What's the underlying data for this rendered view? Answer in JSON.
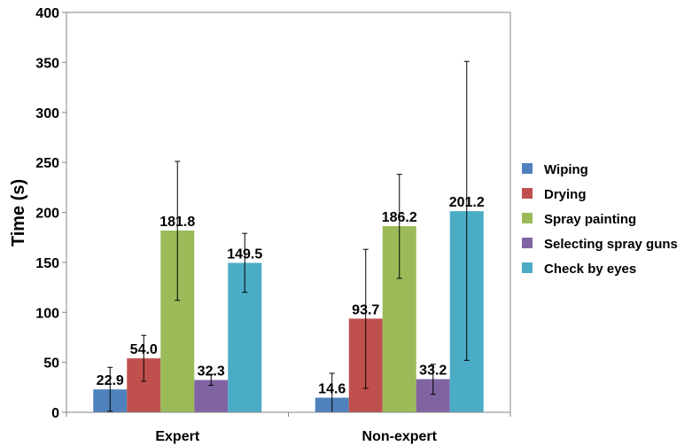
{
  "chart_data": {
    "type": "bar",
    "categories": [
      "Expert",
      "Non-expert"
    ],
    "ylabel": "Time (s)",
    "xlabel": "",
    "ylim": [
      0,
      400
    ],
    "yticks": [
      0,
      50,
      100,
      150,
      200,
      250,
      300,
      350,
      400
    ],
    "grid": false,
    "legend_position": "right",
    "series": [
      {
        "name": "Wiping",
        "color": "#4F81BD",
        "values": [
          22.9,
          14.6
        ],
        "labels": [
          "22.9",
          "14.6"
        ],
        "error_low": [
          1,
          0
        ],
        "error_high": [
          45,
          39
        ]
      },
      {
        "name": "Drying",
        "color": "#C0504D",
        "values": [
          54.0,
          93.7
        ],
        "labels": [
          "54.0",
          "93.7"
        ],
        "error_low": [
          31,
          24
        ],
        "error_high": [
          77,
          163
        ]
      },
      {
        "name": "Spray painting",
        "color": "#9BBB59",
        "values": [
          181.8,
          186.2
        ],
        "labels": [
          "181.8",
          "186.2"
        ],
        "error_low": [
          112,
          134
        ],
        "error_high": [
          251,
          238
        ]
      },
      {
        "name": "Selecting spray guns",
        "color": "#8064A2",
        "values": [
          32.3,
          33.2
        ],
        "labels": [
          "32.3",
          "33.2"
        ],
        "error_low": [
          27,
          18
        ],
        "error_high": [
          38,
          48
        ]
      },
      {
        "name": "Check by eyes",
        "color": "#4BACC6",
        "values": [
          149.5,
          201.2
        ],
        "labels": [
          "149.5",
          "201.2"
        ],
        "error_low": [
          120,
          52
        ],
        "error_high": [
          179,
          351
        ]
      }
    ]
  }
}
